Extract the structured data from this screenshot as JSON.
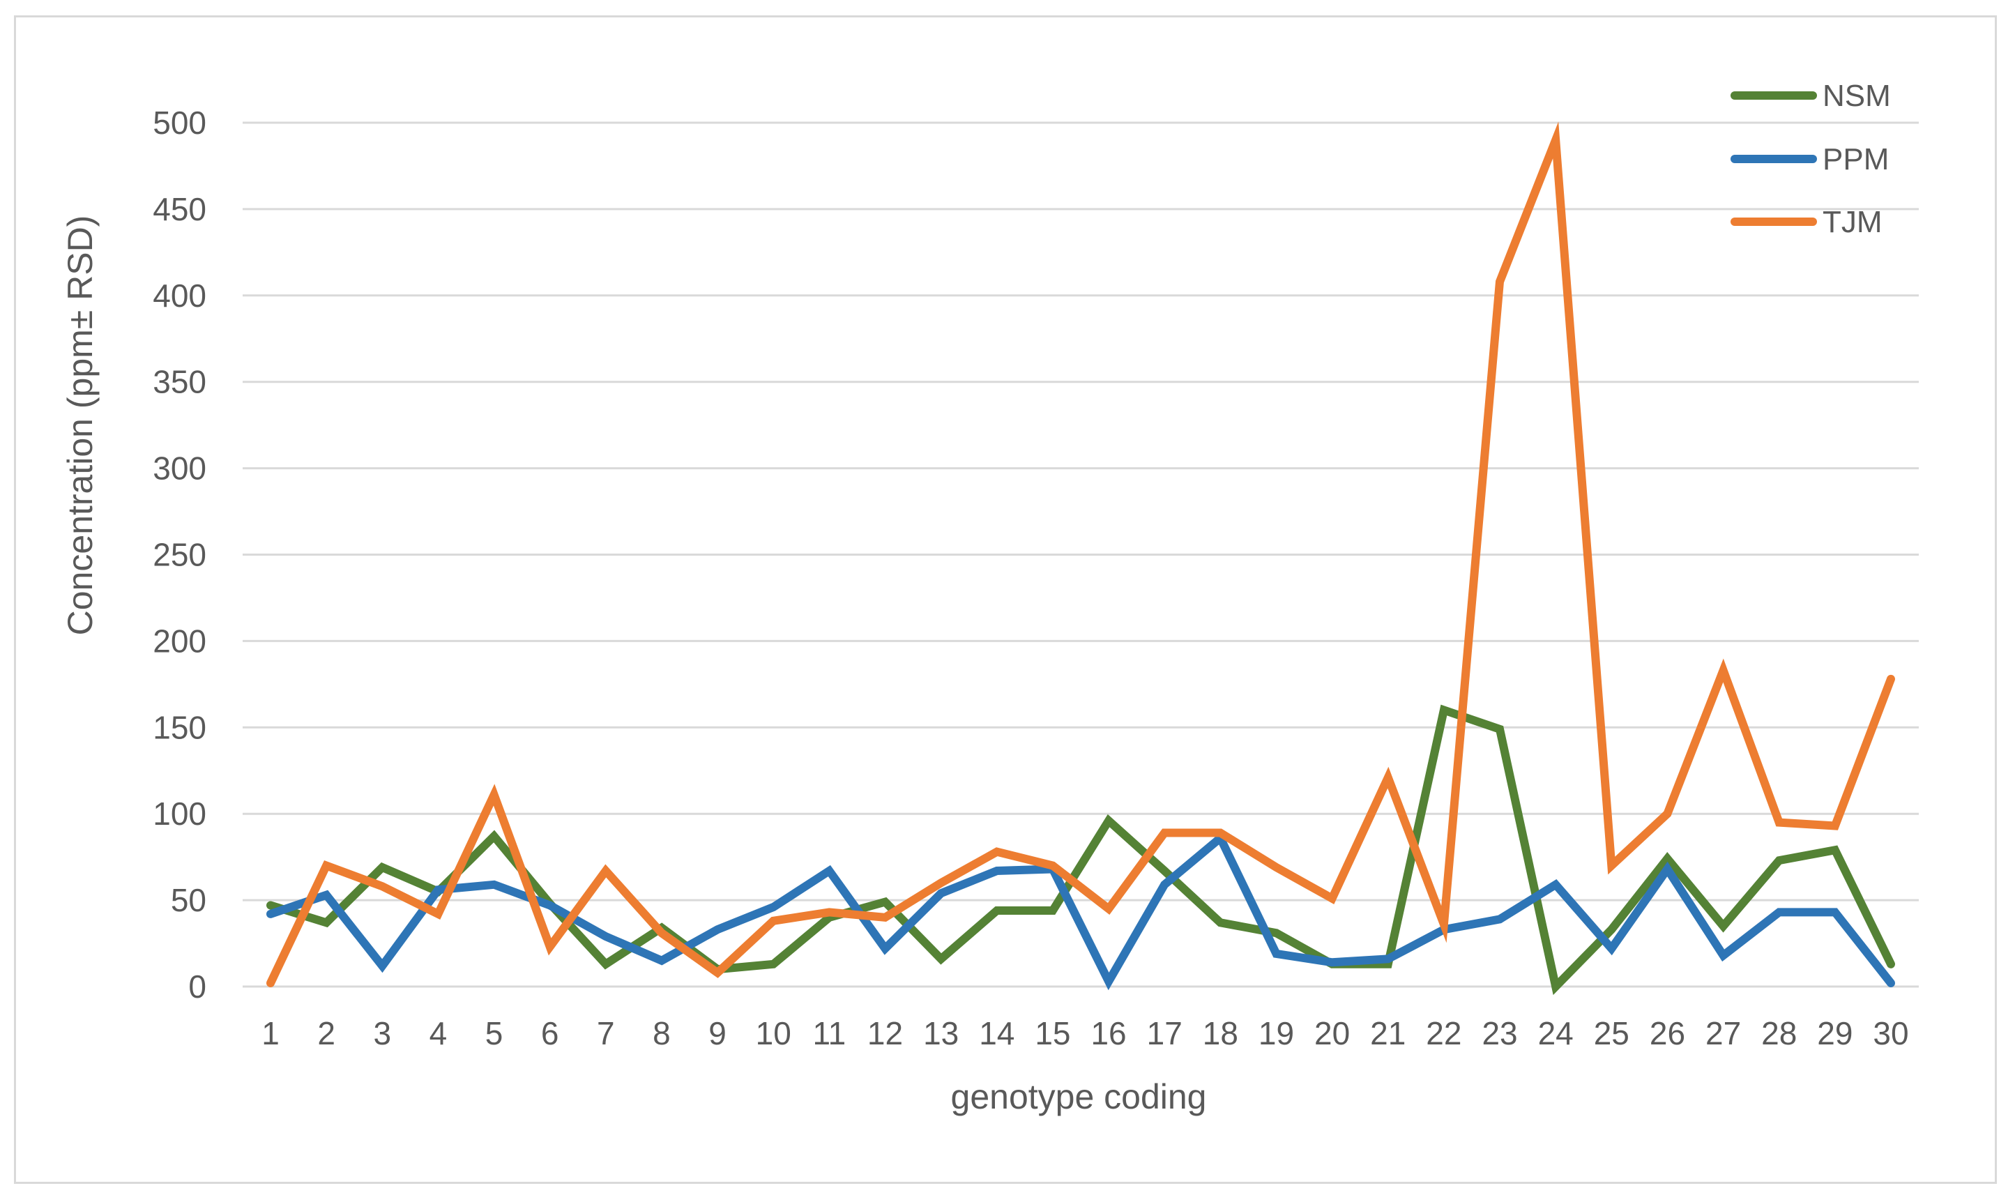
{
  "chart_data": {
    "type": "line",
    "title": "",
    "xlabel": "genotype coding",
    "ylabel": "Concentration (ppm± RSD)",
    "x": [
      1,
      2,
      3,
      4,
      5,
      6,
      7,
      8,
      9,
      10,
      11,
      12,
      13,
      14,
      15,
      16,
      17,
      18,
      19,
      20,
      21,
      22,
      23,
      24,
      25,
      26,
      27,
      28,
      29,
      30
    ],
    "ylim": [
      0,
      500
    ],
    "yticks": [
      0,
      50,
      100,
      150,
      200,
      250,
      300,
      350,
      400,
      450,
      500
    ],
    "grid": "horizontal",
    "legend_position": "top-right",
    "series": [
      {
        "name": "NSM",
        "color": "#548235",
        "values": [
          47,
          37,
          69,
          55,
          87,
          48,
          13,
          34,
          10,
          13,
          40,
          49,
          16,
          44,
          44,
          96,
          67,
          37,
          31,
          13,
          13,
          160,
          149,
          0,
          33,
          74,
          35,
          73,
          79,
          13
        ]
      },
      {
        "name": "PPM",
        "color": "#2e75b6",
        "values": [
          42,
          53,
          12,
          56,
          59,
          47,
          29,
          15,
          33,
          46,
          67,
          22,
          54,
          67,
          68,
          3,
          59,
          86,
          19,
          14,
          16,
          33,
          39,
          59,
          22,
          68,
          18,
          43,
          43,
          2
        ]
      },
      {
        "name": "TJM",
        "color": "#ed7d31",
        "values": [
          2,
          70,
          58,
          42,
          111,
          23,
          67,
          31,
          8,
          38,
          43,
          40,
          60,
          78,
          70,
          45,
          89,
          89,
          69,
          51,
          121,
          36,
          408,
          490,
          70,
          100,
          183,
          95,
          93,
          178
        ]
      }
    ]
  }
}
